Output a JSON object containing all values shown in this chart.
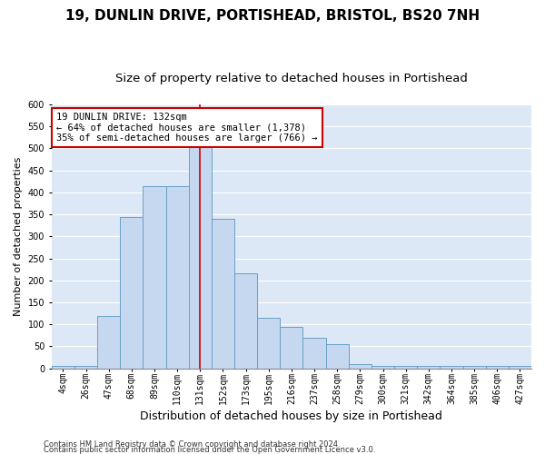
{
  "title1": "19, DUNLIN DRIVE, PORTISHEAD, BRISTOL, BS20 7NH",
  "title2": "Size of property relative to detached houses in Portishead",
  "xlabel": "Distribution of detached houses by size in Portishead",
  "ylabel": "Number of detached properties",
  "categories": [
    "4sqm",
    "26sqm",
    "47sqm",
    "68sqm",
    "89sqm",
    "110sqm",
    "131sqm",
    "152sqm",
    "173sqm",
    "195sqm",
    "216sqm",
    "237sqm",
    "258sqm",
    "279sqm",
    "300sqm",
    "321sqm",
    "342sqm",
    "364sqm",
    "385sqm",
    "406sqm",
    "427sqm"
  ],
  "values": [
    5,
    5,
    120,
    345,
    415,
    415,
    510,
    340,
    215,
    115,
    95,
    70,
    55,
    10,
    5,
    5,
    5,
    5,
    5,
    5,
    5
  ],
  "bar_color": "#c5d8ef",
  "bar_edge_color": "#6a9fc8",
  "vline_x_idx": 6,
  "vline_color": "#cc0000",
  "annotation_text": "19 DUNLIN DRIVE: 132sqm\n← 64% of detached houses are smaller (1,378)\n35% of semi-detached houses are larger (766) →",
  "annotation_box_color": "#ffffff",
  "annotation_box_edge_color": "#cc0000",
  "ylim": [
    0,
    600
  ],
  "yticks": [
    0,
    50,
    100,
    150,
    200,
    250,
    300,
    350,
    400,
    450,
    500,
    550,
    600
  ],
  "background_color": "#dce8f5",
  "grid_color": "#ffffff",
  "footer1": "Contains HM Land Registry data © Crown copyright and database right 2024.",
  "footer2": "Contains public sector information licensed under the Open Government Licence v3.0.",
  "title1_fontsize": 11,
  "title2_fontsize": 9.5,
  "xlabel_fontsize": 9,
  "ylabel_fontsize": 8,
  "tick_labelsize": 7,
  "ann_fontsize": 7.5,
  "footer_fontsize": 6
}
